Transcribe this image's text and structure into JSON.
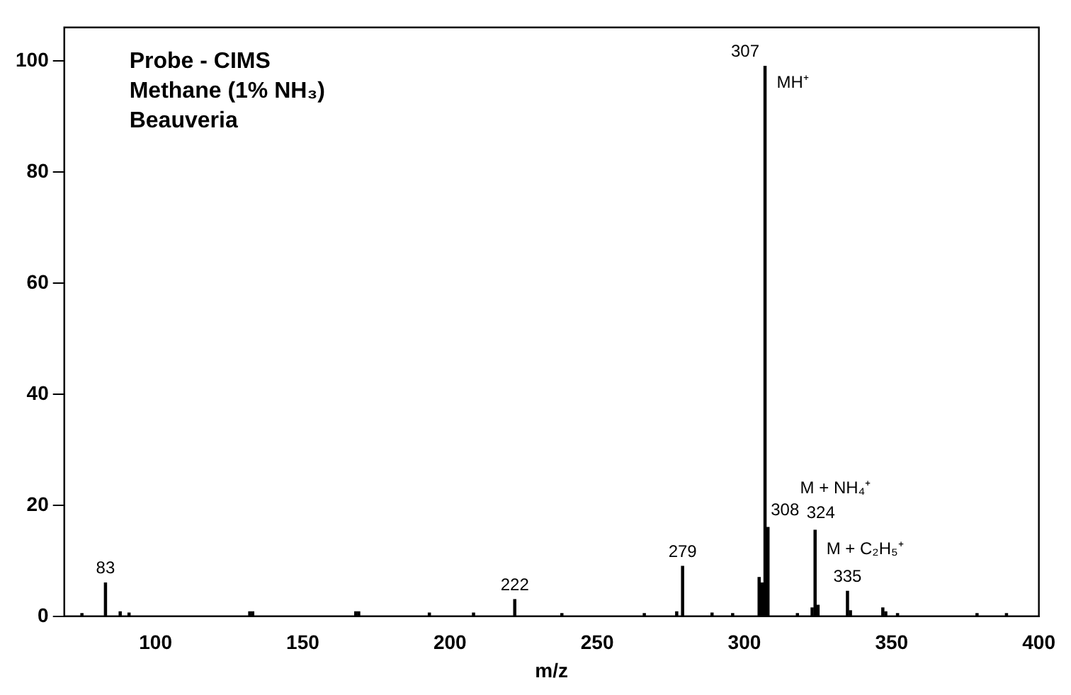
{
  "chart_data": {
    "type": "bar",
    "xlabel": "m/z",
    "color": "#000000",
    "x": [
      75,
      83,
      88,
      91,
      132,
      133,
      168,
      169,
      193,
      208,
      222,
      238,
      266,
      277,
      279,
      289,
      296,
      305,
      306,
      307,
      308,
      318,
      323,
      324,
      325,
      335,
      336,
      347,
      348,
      352,
      379,
      389
    ],
    "values": [
      0.5,
      6,
      0.8,
      0.6,
      0.8,
      0.8,
      0.8,
      0.8,
      0.6,
      0.6,
      3,
      0.5,
      0.5,
      0.8,
      9,
      0.6,
      0.5,
      7,
      6,
      99,
      16,
      0.5,
      1.5,
      15.5,
      2,
      4.5,
      1,
      1.5,
      0.8,
      0.5,
      0.5,
      0.5
    ],
    "xlim": [
      69,
      400
    ],
    "xticks": [
      100,
      150,
      200,
      250,
      300,
      350,
      400
    ],
    "ylim": [
      0,
      106
    ],
    "yticks": [
      0,
      20,
      40,
      60,
      80,
      100
    ],
    "grid": false,
    "legend": false,
    "annotations": [
      "Probe - CIMS",
      "Methane (1% NH₃)",
      "Beauveria",
      {
        "text": "83",
        "x": 83,
        "y": 6
      },
      {
        "text": "222",
        "x": 222,
        "y": 3
      },
      {
        "text": "279",
        "x": 279,
        "y": 9
      },
      {
        "text": "307",
        "x": 307,
        "y": 99
      },
      {
        "text": "308",
        "x": 308,
        "y": 16
      },
      {
        "text": "324",
        "x": 324,
        "y": 15.5
      },
      {
        "text": "335",
        "x": 335,
        "y": 4.5
      },
      "MH⁺",
      "M + NH₄⁺",
      "M + C₂H₅⁺"
    ]
  }
}
